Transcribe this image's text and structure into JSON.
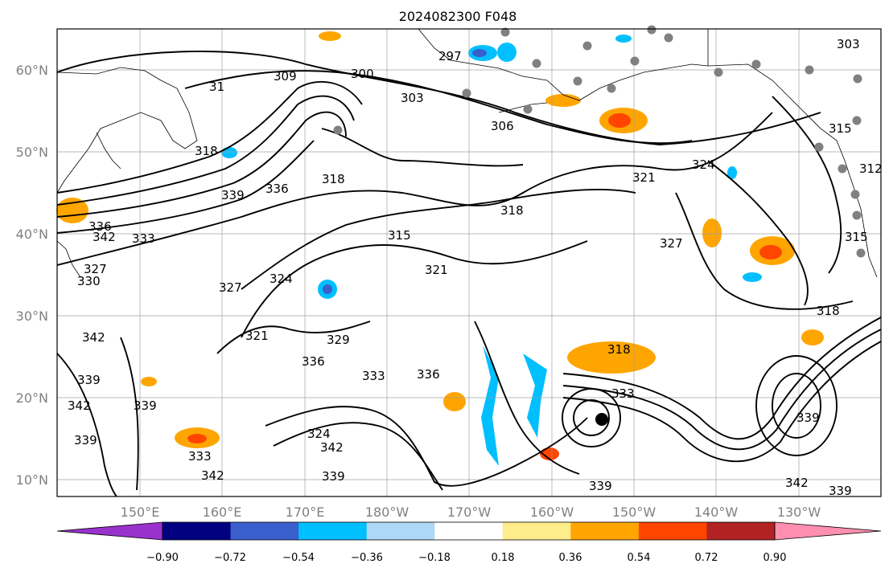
{
  "title": "2024082300 F048",
  "lat_labels": [
    "60°N",
    "50°N",
    "40°N",
    "30°N",
    "20°N",
    "10°N"
  ],
  "lon_labels": [
    "150°E",
    "160°E",
    "170°E",
    "180°W",
    "170°W",
    "160°W",
    "150°W",
    "140°W",
    "130°W"
  ],
  "contour_labels": [
    "309",
    "300",
    "303",
    "306",
    "31",
    "318",
    "339",
    "336",
    "318",
    "315",
    "321",
    "318",
    "321",
    "324",
    "327",
    "327",
    "324",
    "321",
    "336",
    "333",
    "336",
    "318",
    "333",
    "339",
    "342",
    "339",
    "339",
    "342",
    "342",
    "339",
    "339",
    "342",
    "339",
    "330",
    "327",
    "336",
    "333",
    "342",
    "303",
    "315",
    "312",
    "315",
    "318",
    "339",
    "324",
    "342",
    "297",
    "333",
    "329"
  ],
  "colorbar": {
    "tick_labels": [
      "−0.90",
      "−0.72",
      "−0.54",
      "−0.36",
      "−0.18",
      "0.18",
      "0.36",
      "0.54",
      "0.72",
      "0.90"
    ],
    "colors": [
      "#9932cc",
      "#000080",
      "#3a5fcd",
      "#00bfff",
      "#add8f6",
      "#ffffff",
      "#ffec8b",
      "#ffa500",
      "#ff4500",
      "#b22222",
      "#ff8fb0"
    ]
  },
  "colors": {
    "contour": "#000000",
    "grid": "#a0a0a0",
    "station": "#808080",
    "storm": "#000000"
  }
}
